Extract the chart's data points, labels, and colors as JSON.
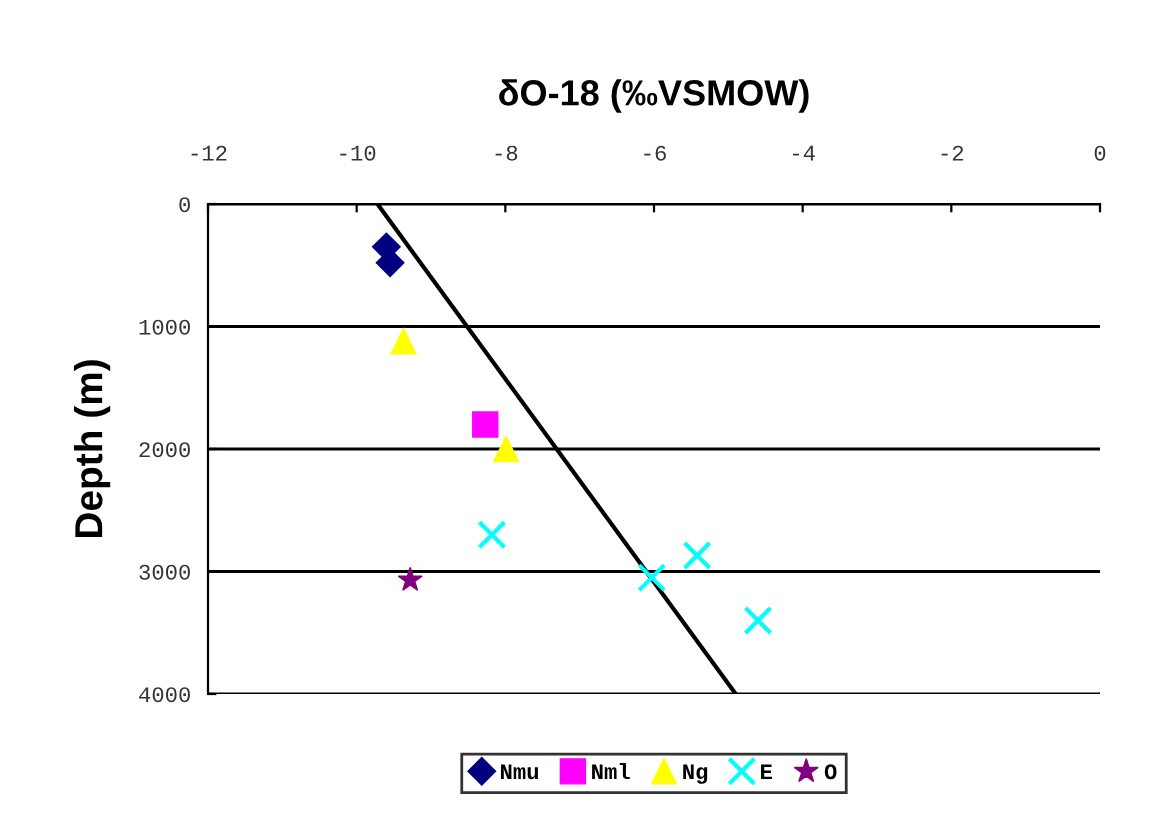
{
  "chart_data": {
    "type": "scatter",
    "title": "δO-18 (‰VSMOW)",
    "ylabel": "Depth (m)",
    "xlim": [
      -12,
      0
    ],
    "xticks": [
      -12,
      -10,
      -8,
      -6,
      -4,
      -2,
      0
    ],
    "ylim": [
      4000,
      0
    ],
    "yticks": [
      0,
      1000,
      2000,
      3000,
      4000
    ],
    "grid": "y",
    "legend": "bottom",
    "series": [
      {
        "name": "Nmu",
        "color": "#000080",
        "marker": "diamond",
        "x": [
          -9.6,
          -9.55
        ],
        "values": [
          350,
          480
        ]
      },
      {
        "name": "Nml",
        "color": "#ff00ff",
        "marker": "square",
        "x": [
          -8.27
        ],
        "values": [
          1800
        ]
      },
      {
        "name": "Ng",
        "color": "#ffff00",
        "marker": "triangle",
        "x": [
          -9.37,
          -7.99
        ],
        "values": [
          1120,
          2000
        ]
      },
      {
        "name": "E",
        "color": "#00ffff",
        "marker": "cross",
        "x": [
          -8.18,
          -6.03,
          -5.42,
          -4.6
        ],
        "values": [
          2700,
          3050,
          2870,
          3400
        ]
      },
      {
        "name": "O",
        "color": "#800080",
        "marker": "star",
        "x": [
          -9.28
        ],
        "values": [
          3070
        ]
      },
      {
        "type": "line",
        "color": "#000000",
        "marker": "none",
        "x": [
          -9.72,
          -4.9
        ],
        "values": [
          0,
          4000
        ]
      }
    ]
  }
}
